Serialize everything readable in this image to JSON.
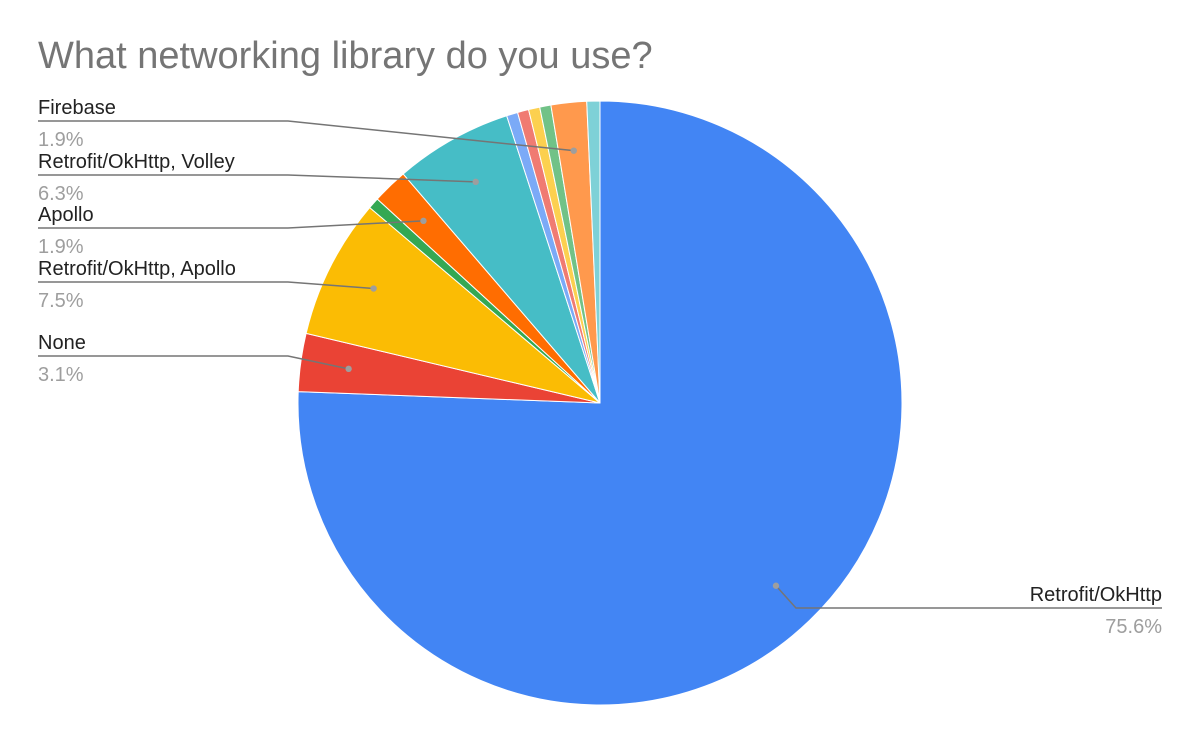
{
  "chart_data": {
    "type": "pie",
    "title": "What networking library do you use?",
    "slices": [
      {
        "label": "Retrofit/OkHttp",
        "value": 75.6,
        "pct_label": "75.6%",
        "color": "#4285f4",
        "labeled": true
      },
      {
        "label": "None",
        "value": 3.1,
        "pct_label": "3.1%",
        "color": "#ea4335",
        "labeled": true
      },
      {
        "label": "Retrofit/OkHttp, Apollo",
        "value": 7.5,
        "pct_label": "7.5%",
        "color": "#fbbc04",
        "labeled": true
      },
      {
        "label": "",
        "value": 0.6,
        "pct_label": "",
        "color": "#34a853",
        "labeled": false
      },
      {
        "label": "Apollo",
        "value": 1.9,
        "pct_label": "1.9%",
        "color": "#ff6d01",
        "labeled": true
      },
      {
        "label": "Retrofit/OkHttp, Volley",
        "value": 6.3,
        "pct_label": "6.3%",
        "color": "#46bdc6",
        "labeled": true
      },
      {
        "label": "",
        "value": 0.6,
        "pct_label": "",
        "color": "#7baaf7",
        "labeled": false
      },
      {
        "label": "",
        "value": 0.6,
        "pct_label": "",
        "color": "#f07b72",
        "labeled": false
      },
      {
        "label": "",
        "value": 0.6,
        "pct_label": "",
        "color": "#fcd04f",
        "labeled": false
      },
      {
        "label": "",
        "value": 0.6,
        "pct_label": "",
        "color": "#71c287",
        "labeled": false
      },
      {
        "label": "Firebase",
        "value": 1.9,
        "pct_label": "1.9%",
        "color": "#ff994d",
        "labeled": true
      },
      {
        "label": "",
        "value": 0.7,
        "pct_label": "",
        "color": "#7ed1d7",
        "labeled": false
      }
    ]
  }
}
